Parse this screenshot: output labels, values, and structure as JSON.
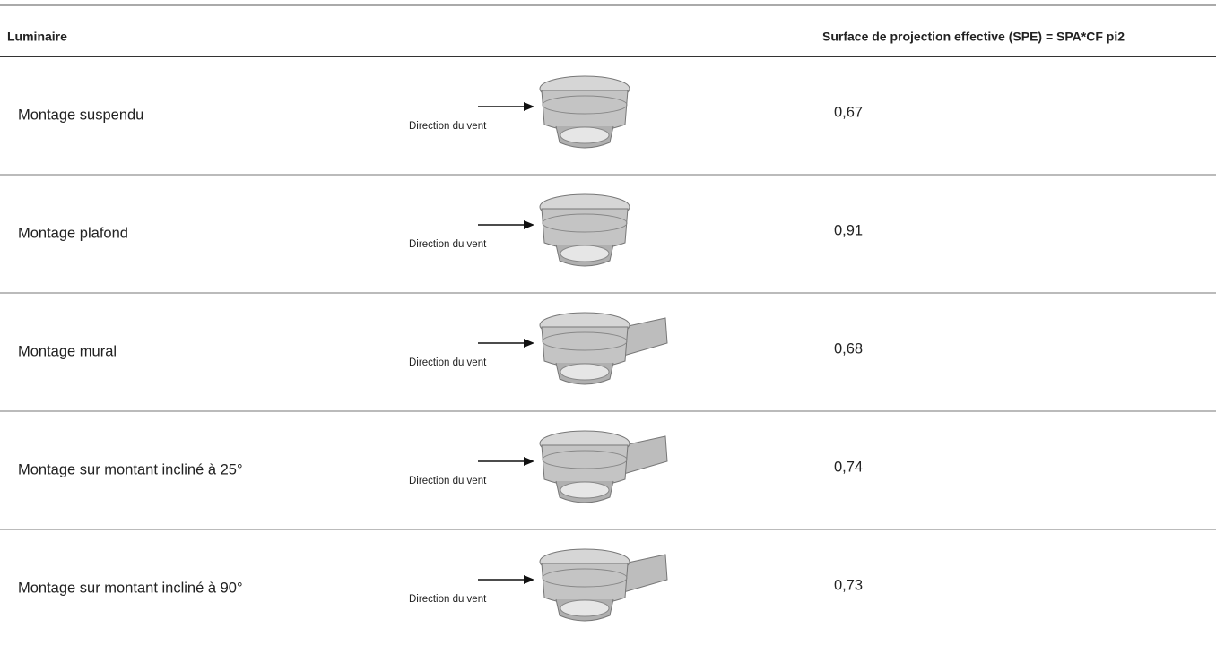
{
  "table": {
    "headers": [
      "Luminaire",
      "Surface de projection effective (SPE) = SPA*CF pi2"
    ],
    "rows": [
      {
        "label": "Montage suspendu",
        "caption": "Direction du vent",
        "value": "0,67"
      },
      {
        "label": "Montage plafond",
        "caption": "Direction du vent",
        "value": "0,91"
      },
      {
        "label": "Montage mural",
        "caption": "Direction du vent",
        "value": "0,68"
      },
      {
        "label": "Montage sur montant incliné à 25°",
        "caption": "Direction du vent",
        "value": "0,74"
      },
      {
        "label": "Montage sur montant incliné à 90°",
        "caption": "Direction du vent",
        "value": "0,73"
      }
    ]
  }
}
